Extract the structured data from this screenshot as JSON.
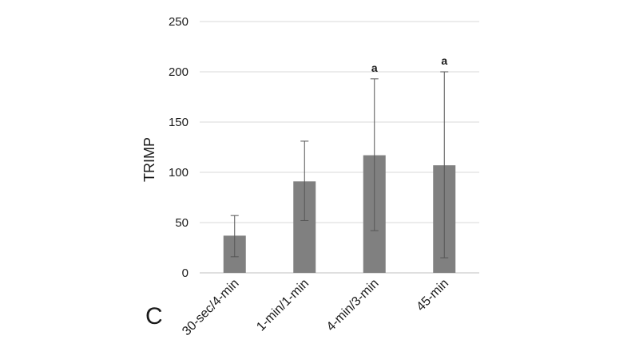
{
  "chart_data": {
    "type": "bar",
    "panel_label": "C",
    "title": "",
    "xlabel": "",
    "ylabel": "TRIMP",
    "ylim": [
      0,
      250
    ],
    "yticks": [
      0,
      50,
      100,
      150,
      200,
      250
    ],
    "grid": true,
    "categories": [
      "30-sec/4-min",
      "1-min/1-min",
      "4-min/3-min",
      "45-min"
    ],
    "values": [
      37,
      91,
      117,
      107
    ],
    "error_bars": [
      {
        "low": 16,
        "high": 57
      },
      {
        "low": 52,
        "high": 131
      },
      {
        "low": 42,
        "high": 193
      },
      {
        "low": 15,
        "high": 200
      }
    ],
    "annotations": [
      "",
      "",
      "a",
      "a"
    ],
    "colors": {
      "bar": "#808080",
      "grid": "#d9d9d9",
      "axis": "#bfbfbf",
      "error": "#555555",
      "text": "#1a1a1a"
    }
  }
}
